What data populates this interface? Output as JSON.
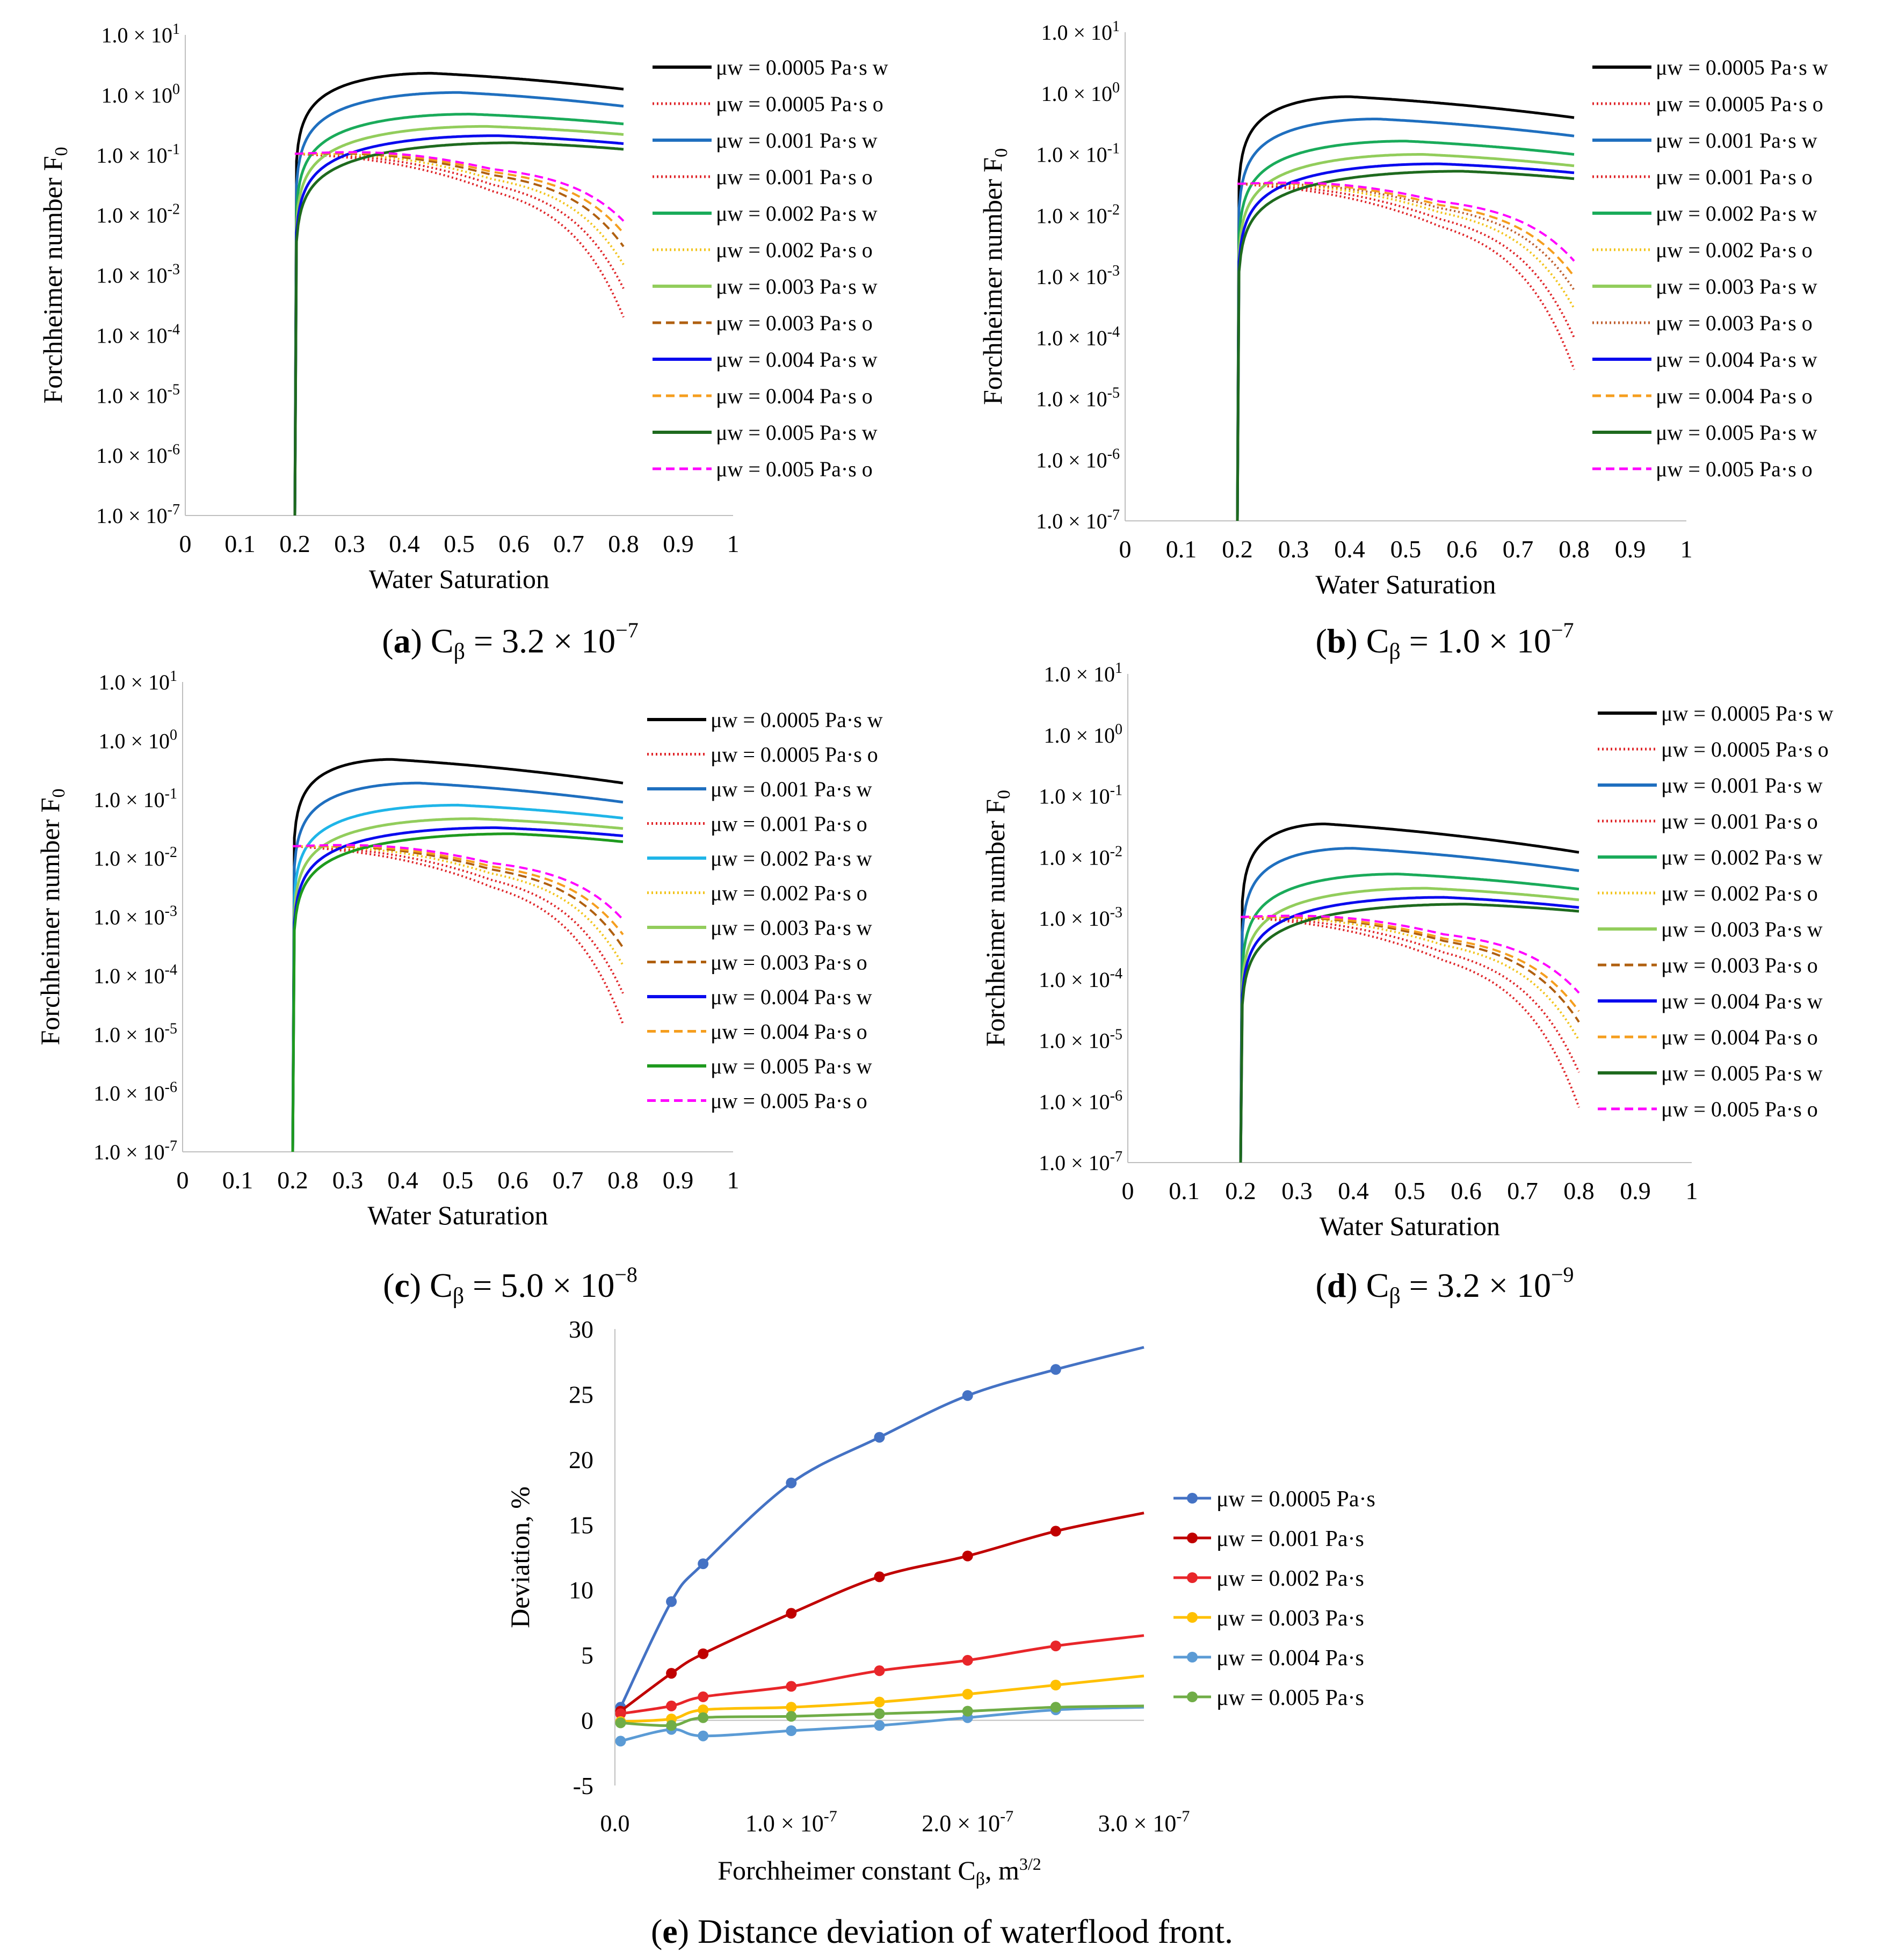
{
  "colors": {
    "black": "#000000",
    "blue": "#1f6fbf",
    "lightblue": "#1fb5e8",
    "green": "#1aab5a",
    "lightgreen": "#92cd5c",
    "blue2": "#0a0aee",
    "darkgreen": "#1e6a1e",
    "green2": "#1e9a1e",
    "red": "#e0262a",
    "gold": "#f2c41c",
    "brown": "#b06010",
    "orange": "#f59e1e",
    "magenta": "#ff00ff",
    "rust": "#c06030",
    "e_blue": "#4472c4",
    "e_darkred": "#c00000",
    "e_red": "#e8262a",
    "e_yellow": "#ffc000",
    "e_lightblue": "#5b9bd5",
    "e_green": "#70ad47"
  },
  "chart_data": [
    {
      "id": "a",
      "type": "line",
      "yscale": "log",
      "ylabel": "Forchheimer number F",
      "ylabel_sub": "0",
      "xlabel": "Water Saturation",
      "xlim": [
        0,
        1
      ],
      "ylim_exp": [
        -7,
        1
      ],
      "xticks": [
        "0",
        "0.1",
        "0.2",
        "0.3",
        "0.4",
        "0.5",
        "0.6",
        "0.7",
        "0.8",
        "0.9",
        "1"
      ],
      "yticks": [
        "1.0 × 10-7",
        "1.0 × 10-6",
        "1.0 × 10-5",
        "1.0 × 10-4",
        "1.0 × 10-3",
        "1.0 × 10-2",
        "1.0 × 10-1",
        "1.0 × 100",
        "1.0 × 101"
      ],
      "caption": {
        "letter": "a",
        "text": "C",
        "sub": "β",
        "eq": " = 3.2 × 10",
        "sup": "−7"
      },
      "series": [
        {
          "name": "μw = 0.0005 Pa·s w",
          "kind": "w",
          "color": "black",
          "dash": "solid",
          "peak_x": 0.45,
          "peak": 2.3,
          "end": 1.25
        },
        {
          "name": "μw = 0.0005 Pa·s o",
          "kind": "o",
          "color": "red",
          "dash": "dot",
          "start": 0.105,
          "end": 0.0002
        },
        {
          "name": "μw = 0.001 Pa·s w",
          "kind": "w",
          "color": "blue",
          "dash": "solid",
          "peak_x": 0.5,
          "peak": 1.1,
          "end": 0.65
        },
        {
          "name": "μw = 0.001 Pa·s o",
          "kind": "o",
          "color": "red",
          "dash": "dot",
          "start": 0.105,
          "end": 0.0006
        },
        {
          "name": "μw = 0.002 Pa·s w",
          "kind": "w",
          "color": "green",
          "dash": "solid",
          "peak_x": 0.52,
          "peak": 0.48,
          "end": 0.33
        },
        {
          "name": "μw = 0.002 Pa·s o",
          "kind": "o",
          "color": "gold",
          "dash": "dot",
          "start": 0.105,
          "end": 0.0015
        },
        {
          "name": "μw = 0.003 Pa·s w",
          "kind": "w",
          "color": "lightgreen",
          "dash": "solid",
          "peak_x": 0.55,
          "peak": 0.3,
          "end": 0.22
        },
        {
          "name": "μw = 0.003 Pa·s o",
          "kind": "o",
          "color": "brown",
          "dash": "dash",
          "start": 0.105,
          "end": 0.003
        },
        {
          "name": "μw = 0.004 Pa·s w",
          "kind": "w",
          "color": "blue2",
          "dash": "solid",
          "peak_x": 0.57,
          "peak": 0.21,
          "end": 0.155
        },
        {
          "name": "μw = 0.004 Pa·s o",
          "kind": "o",
          "color": "orange",
          "dash": "dash",
          "start": 0.105,
          "end": 0.005
        },
        {
          "name": "μw = 0.005 Pa·s w",
          "kind": "w",
          "color": "darkgreen",
          "dash": "solid",
          "peak_x": 0.6,
          "peak": 0.16,
          "end": 0.125
        },
        {
          "name": "μw = 0.005 Pa·s o",
          "kind": "o",
          "color": "magenta",
          "dash": "dash",
          "start": 0.105,
          "end": 0.008
        }
      ]
    },
    {
      "id": "b",
      "type": "line",
      "yscale": "log",
      "ylabel": "Forchheimer number F",
      "ylabel_sub": "0",
      "xlabel": "Water Saturation",
      "xlim": [
        0,
        1
      ],
      "ylim_exp": [
        -7,
        1
      ],
      "xticks": [
        "0",
        "0.1",
        "0.2",
        "0.3",
        "0.4",
        "0.5",
        "0.6",
        "0.7",
        "0.8",
        "0.9",
        "1"
      ],
      "yticks": [
        "1.0 × 10-7",
        "1.0 × 10-6",
        "1.0 × 10-5",
        "1.0 × 10-4",
        "1.0 × 10-3",
        "1.0 × 10-2",
        "1.0 × 10-1",
        "1.0 × 100",
        "1.0 × 101"
      ],
      "caption": {
        "letter": "b",
        "text": "C",
        "sub": "β",
        "eq": " = 1.0 × 10",
        "sup": "−7"
      },
      "series": [
        {
          "name": "μw = 0.0005 Pa·s w",
          "kind": "w",
          "color": "black",
          "dash": "solid",
          "peak_x": 0.4,
          "peak": 0.88,
          "end": 0.4
        },
        {
          "name": "μw = 0.0005 Pa·s o",
          "kind": "o",
          "color": "red",
          "dash": "dot",
          "start": 0.033,
          "end": 3e-05
        },
        {
          "name": "μw = 0.001 Pa·s w",
          "kind": "w",
          "color": "blue",
          "dash": "solid",
          "peak_x": 0.45,
          "peak": 0.38,
          "end": 0.2
        },
        {
          "name": "μw = 0.001 Pa·s o",
          "kind": "o",
          "color": "red",
          "dash": "dot",
          "start": 0.033,
          "end": 0.0001
        },
        {
          "name": "μw = 0.002 Pa·s w",
          "kind": "w",
          "color": "green",
          "dash": "solid",
          "peak_x": 0.5,
          "peak": 0.165,
          "end": 0.1
        },
        {
          "name": "μw = 0.002 Pa·s o",
          "kind": "o",
          "color": "gold",
          "dash": "dot",
          "start": 0.033,
          "end": 0.0003
        },
        {
          "name": "μw = 0.003 Pa·s w",
          "kind": "w",
          "color": "lightgreen",
          "dash": "solid",
          "peak_x": 0.53,
          "peak": 0.1,
          "end": 0.065
        },
        {
          "name": "μw = 0.003 Pa·s o",
          "kind": "o",
          "color": "rust",
          "dash": "dot",
          "start": 0.033,
          "end": 0.0006
        },
        {
          "name": "μw = 0.004 Pa·s w",
          "kind": "w",
          "color": "blue2",
          "dash": "solid",
          "peak_x": 0.56,
          "peak": 0.07,
          "end": 0.05
        },
        {
          "name": "μw = 0.004 Pa·s o",
          "kind": "o",
          "color": "orange",
          "dash": "dash",
          "start": 0.033,
          "end": 0.001
        },
        {
          "name": "μw = 0.005 Pa·s w",
          "kind": "w",
          "color": "darkgreen",
          "dash": "solid",
          "peak_x": 0.6,
          "peak": 0.053,
          "end": 0.04
        },
        {
          "name": "μw = 0.005 Pa·s o",
          "kind": "o",
          "color": "magenta",
          "dash": "dash",
          "start": 0.033,
          "end": 0.0018
        }
      ]
    },
    {
      "id": "c",
      "type": "line",
      "yscale": "log",
      "ylabel": "Forchheimer number F",
      "ylabel_sub": "0",
      "xlabel": "Water Saturation",
      "xlim": [
        0,
        1
      ],
      "ylim_exp": [
        -7,
        1
      ],
      "xticks": [
        "0",
        "0.1",
        "0.2",
        "0.3",
        "0.4",
        "0.5",
        "0.6",
        "0.7",
        "0.8",
        "0.9",
        "1"
      ],
      "yticks": [
        "1.0 × 10-7",
        "1.0 × 10-6",
        "1.0 × 10-5",
        "1.0 × 10-4",
        "1.0 × 10-3",
        "1.0 × 10-2",
        "1.0 × 10-1",
        "1.0 × 100",
        "1.0 × 101"
      ],
      "caption": {
        "letter": "c",
        "text": "C",
        "sub": "β",
        "eq": " = 5.0 × 10",
        "sup": "−8"
      },
      "series": [
        {
          "name": "μw = 0.0005 Pa·s w",
          "kind": "w",
          "color": "black",
          "dash": "solid",
          "peak_x": 0.38,
          "peak": 0.48,
          "end": 0.19
        },
        {
          "name": "μw = 0.0005 Pa·s o",
          "kind": "o",
          "color": "red",
          "dash": "dot",
          "start": 0.016,
          "end": 1.5e-05
        },
        {
          "name": "μw = 0.001 Pa·s w",
          "kind": "w",
          "color": "blue",
          "dash": "solid",
          "peak_x": 0.43,
          "peak": 0.19,
          "end": 0.09
        },
        {
          "name": "μw = 0.001 Pa·s o",
          "kind": "o",
          "color": "red",
          "dash": "dot",
          "start": 0.016,
          "end": 5e-05
        },
        {
          "name": "μw = 0.002 Pa·s w",
          "kind": "w",
          "color": "lightblue",
          "dash": "solid",
          "peak_x": 0.5,
          "peak": 0.08,
          "end": 0.048
        },
        {
          "name": "μw = 0.002 Pa·s o",
          "kind": "o",
          "color": "gold",
          "dash": "dot",
          "start": 0.016,
          "end": 0.00015
        },
        {
          "name": "μw = 0.003 Pa·s w",
          "kind": "w",
          "color": "lightgreen",
          "dash": "solid",
          "peak_x": 0.53,
          "peak": 0.047,
          "end": 0.032
        },
        {
          "name": "μw = 0.003 Pa·s o",
          "kind": "o",
          "color": "brown",
          "dash": "dash",
          "start": 0.016,
          "end": 0.0003
        },
        {
          "name": "μw = 0.004 Pa·s w",
          "kind": "w",
          "color": "blue2",
          "dash": "solid",
          "peak_x": 0.57,
          "peak": 0.033,
          "end": 0.024
        },
        {
          "name": "μw = 0.004 Pa·s o",
          "kind": "o",
          "color": "orange",
          "dash": "dash",
          "start": 0.016,
          "end": 0.0005
        },
        {
          "name": "μw = 0.005 Pa·s w",
          "kind": "w",
          "color": "green2",
          "dash": "solid",
          "peak_x": 0.6,
          "peak": 0.026,
          "end": 0.019
        },
        {
          "name": "μw = 0.005 Pa·s o",
          "kind": "o",
          "color": "magenta",
          "dash": "dash",
          "start": 0.016,
          "end": 0.0009
        }
      ]
    },
    {
      "id": "d",
      "type": "line",
      "yscale": "log",
      "ylabel": "Forchheimer number F",
      "ylabel_sub": "0",
      "xlabel": "Water Saturation",
      "xlim": [
        0,
        1
      ],
      "ylim_exp": [
        -7,
        1
      ],
      "xticks": [
        "0",
        "0.1",
        "0.2",
        "0.3",
        "0.4",
        "0.5",
        "0.6",
        "0.7",
        "0.8",
        "0.9",
        "1"
      ],
      "yticks": [
        "1.0 × 10-7",
        "1.0 × 10-6",
        "1.0 × 10-5",
        "1.0 × 10-4",
        "1.0 × 10-3",
        "1.0 × 10-2",
        "1.0 × 10-1",
        "1.0 × 100",
        "1.0 × 101"
      ],
      "caption": {
        "letter": "d",
        "text": "C",
        "sub": "β",
        "eq": " = 3.2 × 10",
        "sup": "−9"
      },
      "series": [
        {
          "name": "μw = 0.0005 Pa·s w",
          "kind": "w",
          "color": "black",
          "dash": "solid",
          "peak_x": 0.35,
          "peak": 0.035,
          "end": 0.012
        },
        {
          "name": "μw = 0.0005 Pa·s o",
          "kind": "o",
          "color": "red",
          "dash": "dot",
          "start": 0.00105,
          "end": 8e-07
        },
        {
          "name": "μw = 0.001 Pa·s w",
          "kind": "w",
          "color": "blue",
          "dash": "solid",
          "peak_x": 0.4,
          "peak": 0.014,
          "end": 0.006
        },
        {
          "name": "μw = 0.001 Pa·s o",
          "kind": "o",
          "color": "red",
          "dash": "dot",
          "start": 0.00105,
          "end": 3e-06
        },
        {
          "name": "μw = 0.002 Pa·s w",
          "kind": "w",
          "color": "green",
          "dash": "solid",
          "peak_x": 0.48,
          "peak": 0.0053,
          "end": 0.003
        },
        {
          "name": "μw = 0.002 Pa·s o",
          "kind": "o",
          "color": "gold",
          "dash": "dot",
          "start": 0.00105,
          "end": 1e-05
        },
        {
          "name": "μw = 0.003 Pa·s w",
          "kind": "w",
          "color": "lightgreen",
          "dash": "solid",
          "peak_x": 0.53,
          "peak": 0.0031,
          "end": 0.002
        },
        {
          "name": "μw = 0.003 Pa·s o",
          "kind": "o",
          "color": "brown",
          "dash": "dash",
          "start": 0.00105,
          "end": 2e-05
        },
        {
          "name": "μw = 0.004 Pa·s w",
          "kind": "w",
          "color": "blue2",
          "dash": "solid",
          "peak_x": 0.56,
          "peak": 0.0022,
          "end": 0.0015
        },
        {
          "name": "μw = 0.004 Pa·s o",
          "kind": "o",
          "color": "orange",
          "dash": "dash",
          "start": 0.00105,
          "end": 3e-05
        },
        {
          "name": "μw = 0.005 Pa·s w",
          "kind": "w",
          "color": "darkgreen",
          "dash": "solid",
          "peak_x": 0.6,
          "peak": 0.0017,
          "end": 0.0013
        },
        {
          "name": "μw = 0.005 Pa·s o",
          "kind": "o",
          "color": "magenta",
          "dash": "dash",
          "start": 0.00105,
          "end": 6e-05
        }
      ]
    },
    {
      "id": "e",
      "type": "line",
      "xlabel": "Forchheimer constant C",
      "xlabel_sub": "β",
      "xlabel_tail": ", m",
      "xlabel_sup": "3/2",
      "ylabel": "Deviation, %",
      "xlim": [
        0,
        3e-07
      ],
      "ylim": [
        -5,
        30
      ],
      "xticks": [
        {
          "v": 0,
          "label": "0.0",
          "sup": ""
        },
        {
          "v": 1e-07,
          "label": "1.0 × 10",
          "sup": "-7"
        },
        {
          "v": 2e-07,
          "label": "2.0 × 10",
          "sup": "-7"
        },
        {
          "v": 3e-07,
          "label": "3.0 × 10",
          "sup": "-7"
        }
      ],
      "yticks": [
        -5,
        0,
        5,
        10,
        15,
        20,
        25,
        30
      ],
      "x": [
        3.2e-09,
        3.2e-08,
        5e-08,
        1e-07,
        1.5e-07,
        2e-07,
        2.5e-07,
        3e-07
      ],
      "caption": {
        "letter": "e",
        "text": "Distance deviation of waterflood front."
      },
      "series": [
        {
          "name": "μw = 0.0005 Pa·s",
          "color": "e_blue",
          "values": [
            1.0,
            9.1,
            12.0,
            18.2,
            21.7,
            24.9,
            26.9,
            28.6
          ]
        },
        {
          "name": "μw = 0.001 Pa·s",
          "color": "e_darkred",
          "values": [
            0.7,
            3.6,
            5.1,
            8.2,
            11.0,
            12.6,
            14.5,
            15.9
          ]
        },
        {
          "name": "μw = 0.002 Pa·s",
          "color": "e_red",
          "values": [
            0.5,
            1.1,
            1.8,
            2.6,
            3.8,
            4.6,
            5.7,
            6.5
          ]
        },
        {
          "name": "μw = 0.003 Pa·s",
          "color": "e_yellow",
          "values": [
            -0.1,
            0.1,
            0.8,
            1.0,
            1.4,
            2.0,
            2.7,
            3.4
          ]
        },
        {
          "name": "μw = 0.004 Pa·s",
          "color": "e_lightblue",
          "values": [
            -1.6,
            -0.7,
            -1.2,
            -0.8,
            -0.4,
            0.2,
            0.8,
            1.0
          ]
        },
        {
          "name": "μw = 0.005 Pa·s",
          "color": "e_green",
          "values": [
            -0.2,
            -0.4,
            0.2,
            0.3,
            0.5,
            0.7,
            1.0,
            1.1
          ]
        }
      ]
    }
  ]
}
